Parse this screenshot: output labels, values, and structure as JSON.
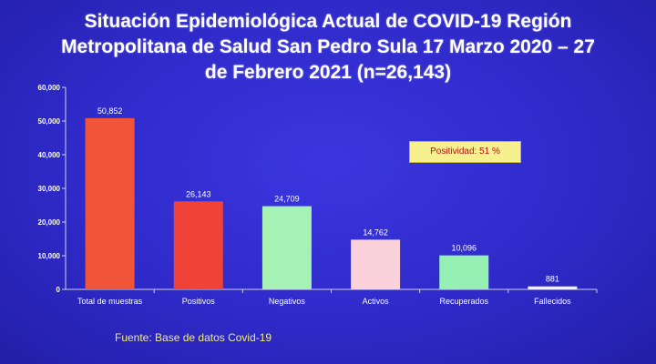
{
  "title_lines": [
    "Situación Epidemiológica Actual de COVID-19 Región",
    "Metropolitana de Salud San Pedro Sula 17 Marzo  2020 –  27",
    "de  Febrero 2021   (n=26,143)"
  ],
  "badge": "Positividad: 51 %",
  "source": "Fuente: Base de datos Covid-19",
  "colors": {
    "axis": "#cfcfe8",
    "text": "#ffffff",
    "badge_bg": "#f6f08e",
    "badge_text": "#b31212",
    "source_text": "#f3ec7a"
  },
  "chart_data": {
    "type": "bar",
    "title": "Situación Epidemiológica Actual de COVID-19 Región Metropolitana de Salud San Pedro Sula 17 Marzo  2020 –  27 de  Febrero 2021   (n=26,143)",
    "categories": [
      "Total de muestras",
      "Positivos",
      "Negativos",
      "Activos",
      "Recuperados",
      "Fallecidos"
    ],
    "values": [
      50852,
      26143,
      24709,
      14762,
      10096,
      881
    ],
    "value_labels": [
      "50,852",
      "26,143",
      "24,709",
      "14,762",
      "10,096",
      "881"
    ],
    "bar_colors": [
      "#f0553a",
      "#ef4338",
      "#a6f1b4",
      "#fbd2dc",
      "#96f0b3",
      "#f2f2f2"
    ],
    "ylim": [
      0,
      60000
    ],
    "yticks": [
      0,
      10000,
      20000,
      30000,
      40000,
      50000,
      60000
    ],
    "ytick_labels": [
      "0",
      "10,000",
      "20,000",
      "30,000",
      "40,000",
      "50,000",
      "60,000"
    ],
    "xlabel": "",
    "ylabel": "",
    "grid": false,
    "legend": false
  }
}
